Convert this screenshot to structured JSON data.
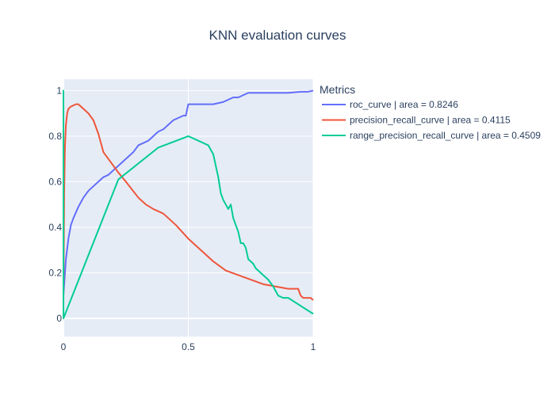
{
  "chart_data": {
    "type": "line",
    "title": "KNN evaluation curves",
    "xlabel": "",
    "ylabel": "",
    "xlim": [
      0,
      1
    ],
    "ylim": [
      -0.08,
      1.05
    ],
    "x_ticks": [
      "0",
      "0.5",
      "1"
    ],
    "x_tick_values": [
      0,
      0.5,
      1
    ],
    "y_ticks": [
      "0",
      "0.2",
      "0.4",
      "0.6",
      "0.8",
      "1"
    ],
    "y_tick_values": [
      0,
      0.2,
      0.4,
      0.6,
      0.8,
      1
    ],
    "grid": true,
    "legend": {
      "title": "Metrics",
      "placement": "right"
    },
    "series": [
      {
        "name": "roc_curve | area = 0.8246",
        "color": "#636efa",
        "x": [
          0,
          0.005,
          0.01,
          0.02,
          0.03,
          0.04,
          0.06,
          0.08,
          0.1,
          0.12,
          0.14,
          0.16,
          0.18,
          0.2,
          0.22,
          0.24,
          0.26,
          0.28,
          0.3,
          0.32,
          0.34,
          0.36,
          0.38,
          0.4,
          0.42,
          0.44,
          0.46,
          0.48,
          0.49,
          0.5,
          0.55,
          0.6,
          0.64,
          0.66,
          0.68,
          0.7,
          0.72,
          0.74,
          0.8,
          0.9,
          0.95,
          0.98,
          1.0
        ],
        "y": [
          0.1,
          0.18,
          0.26,
          0.35,
          0.41,
          0.44,
          0.49,
          0.53,
          0.56,
          0.58,
          0.6,
          0.62,
          0.63,
          0.65,
          0.67,
          0.69,
          0.71,
          0.73,
          0.76,
          0.77,
          0.78,
          0.8,
          0.82,
          0.83,
          0.85,
          0.87,
          0.88,
          0.89,
          0.89,
          0.94,
          0.94,
          0.94,
          0.95,
          0.96,
          0.97,
          0.97,
          0.98,
          0.99,
          0.99,
          0.99,
          0.995,
          0.995,
          1.0
        ]
      },
      {
        "name": "precision_recall_curve | area = 0.4115",
        "color": "#ef553b",
        "x": [
          0,
          0.003,
          0.006,
          0.01,
          0.015,
          0.02,
          0.03,
          0.04,
          0.05,
          0.06,
          0.07,
          0.08,
          0.1,
          0.12,
          0.13,
          0.14,
          0.15,
          0.16,
          0.18,
          0.2,
          0.22,
          0.25,
          0.3,
          0.33,
          0.36,
          0.4,
          0.45,
          0.5,
          0.55,
          0.6,
          0.65,
          0.7,
          0.75,
          0.8,
          0.85,
          0.9,
          0.94,
          0.95,
          0.96,
          0.98,
          0.99,
          1.0
        ],
        "y": [
          0.06,
          0.55,
          0.75,
          0.85,
          0.9,
          0.92,
          0.93,
          0.935,
          0.94,
          0.94,
          0.93,
          0.92,
          0.9,
          0.87,
          0.84,
          0.81,
          0.77,
          0.73,
          0.7,
          0.67,
          0.64,
          0.6,
          0.53,
          0.5,
          0.48,
          0.46,
          0.41,
          0.35,
          0.3,
          0.25,
          0.21,
          0.19,
          0.17,
          0.15,
          0.14,
          0.13,
          0.13,
          0.1,
          0.09,
          0.09,
          0.09,
          0.08
        ]
      },
      {
        "name": "range_precision_recall_curve | area = 0.4509",
        "color": "#00cc96",
        "x": [
          0,
          0,
          0,
          0.22,
          0.38,
          0.5,
          0.58,
          0.6,
          0.62,
          0.63,
          0.64,
          0.65,
          0.66,
          0.67,
          0.68,
          0.69,
          0.7,
          0.71,
          0.72,
          0.73,
          0.74,
          0.76,
          0.77,
          0.78,
          0.8,
          0.82,
          0.84,
          0.85,
          0.86,
          0.88,
          0.9,
          1.0
        ],
        "y": [
          0.0,
          1.0,
          0.0,
          0.61,
          0.75,
          0.8,
          0.76,
          0.72,
          0.62,
          0.55,
          0.52,
          0.5,
          0.48,
          0.5,
          0.44,
          0.41,
          0.38,
          0.33,
          0.33,
          0.31,
          0.26,
          0.24,
          0.22,
          0.21,
          0.19,
          0.17,
          0.14,
          0.12,
          0.1,
          0.09,
          0.09,
          0.02
        ]
      }
    ]
  }
}
